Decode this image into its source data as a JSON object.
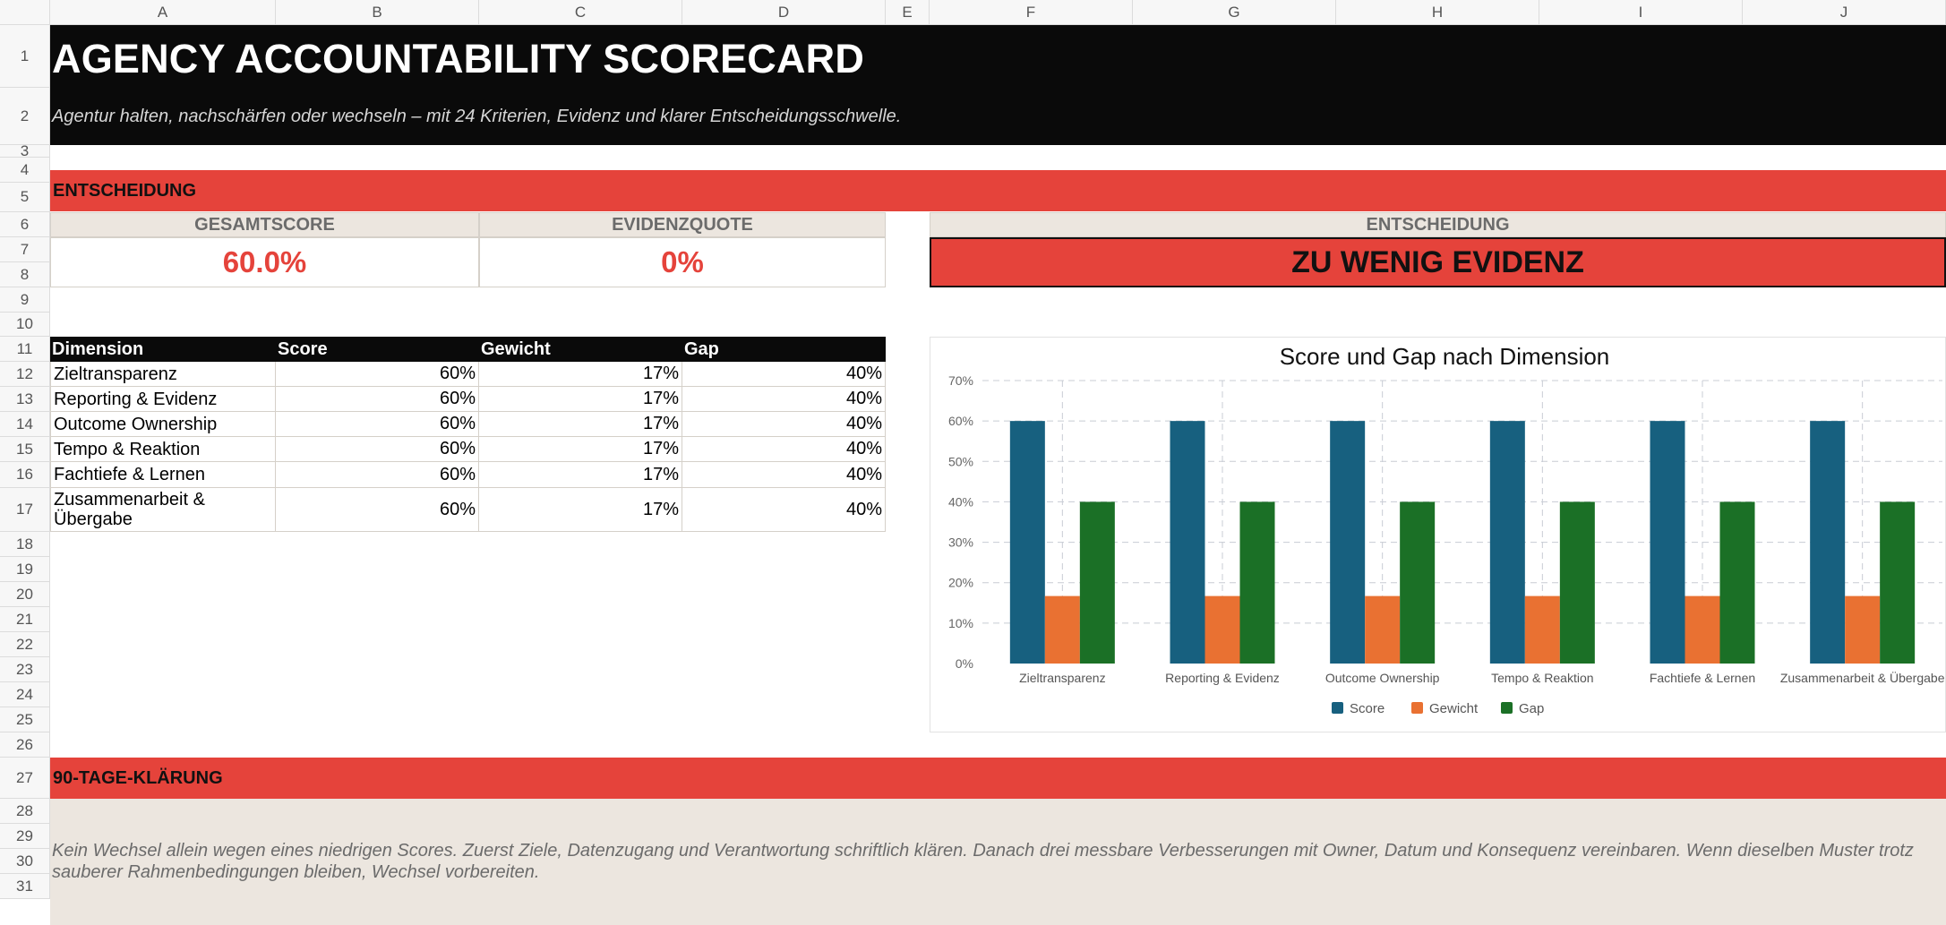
{
  "sheet": {
    "columns": [
      "A",
      "B",
      "C",
      "D",
      "E",
      "F",
      "G",
      "H",
      "I",
      "J"
    ],
    "rows": [
      "1",
      "2",
      "3",
      "4",
      "5",
      "6",
      "7",
      "8",
      "9",
      "10",
      "11",
      "12",
      "13",
      "14",
      "15",
      "16",
      "17",
      "18",
      "19",
      "20",
      "21",
      "22",
      "23",
      "24",
      "25",
      "26",
      "27",
      "28",
      "29",
      "30",
      "31"
    ]
  },
  "header": {
    "title": "AGENCY ACCOUNTABILITY SCORECARD",
    "subtitle": "Agentur halten, nachschärfen oder wechseln – mit 24 Kriterien, Evidenz und klarer Entscheidungsschwelle."
  },
  "decision_section": {
    "label": "ENTSCHEIDUNG",
    "total_score_label": "GESAMTSCORE",
    "total_score_value": "60.0%",
    "evidence_label": "EVIDENZQUOTE",
    "evidence_value": "0%",
    "decision_label": "ENTSCHEIDUNG",
    "decision_value": "ZU WENIG EVIDENZ"
  },
  "table": {
    "headers": [
      "Dimension",
      "Score",
      "Gewicht",
      "Gap"
    ],
    "rows": [
      {
        "dimension": "Zieltransparenz",
        "score": "60%",
        "weight": "17%",
        "gap": "40%"
      },
      {
        "dimension": "Reporting & Evidenz",
        "score": "60%",
        "weight": "17%",
        "gap": "40%"
      },
      {
        "dimension": "Outcome Ownership",
        "score": "60%",
        "weight": "17%",
        "gap": "40%"
      },
      {
        "dimension": "Tempo & Reaktion",
        "score": "60%",
        "weight": "17%",
        "gap": "40%"
      },
      {
        "dimension": "Fachtiefe & Lernen",
        "score": "60%",
        "weight": "17%",
        "gap": "40%"
      },
      {
        "dimension": "Zusammenarbeit & Übergabe",
        "score": "60%",
        "weight": "17%",
        "gap": "40%"
      }
    ]
  },
  "chart_data": {
    "type": "bar",
    "title": "Score und Gap nach Dimension",
    "categories": [
      "Zieltransparenz",
      "Reporting & Evidenz",
      "Outcome Ownership",
      "Tempo & Reaktion",
      "Fachtiefe & Lernen",
      "Zusammenarbeit & Übergabe"
    ],
    "series": [
      {
        "name": "Score",
        "color": "#17607f",
        "values": [
          60,
          60,
          60,
          60,
          60,
          60
        ]
      },
      {
        "name": "Gewicht",
        "color": "#e97132",
        "values": [
          16.7,
          16.7,
          16.7,
          16.7,
          16.7,
          16.7
        ]
      },
      {
        "name": "Gap",
        "color": "#1b7026",
        "values": [
          40,
          40,
          40,
          40,
          40,
          40
        ]
      }
    ],
    "ylim": [
      0,
      70
    ],
    "yticks": [
      "0%",
      "10%",
      "20%",
      "30%",
      "40%",
      "50%",
      "60%",
      "70%"
    ],
    "grid": true,
    "legend_position": "bottom"
  },
  "plan_section": {
    "label": "90-TAGE-KLÄRUNG",
    "text": "Kein Wechsel allein wegen eines niedrigen Scores. Zuerst Ziele, Datenzugang und Verantwortung schriftlich klären. Danach drei messbare Verbesserungen mit Owner, Datum und Konsequenz vereinbaren. Wenn dieselben Muster trotz sauberer Rahmenbedingungen bleiben, Wechsel vorbereiten."
  }
}
